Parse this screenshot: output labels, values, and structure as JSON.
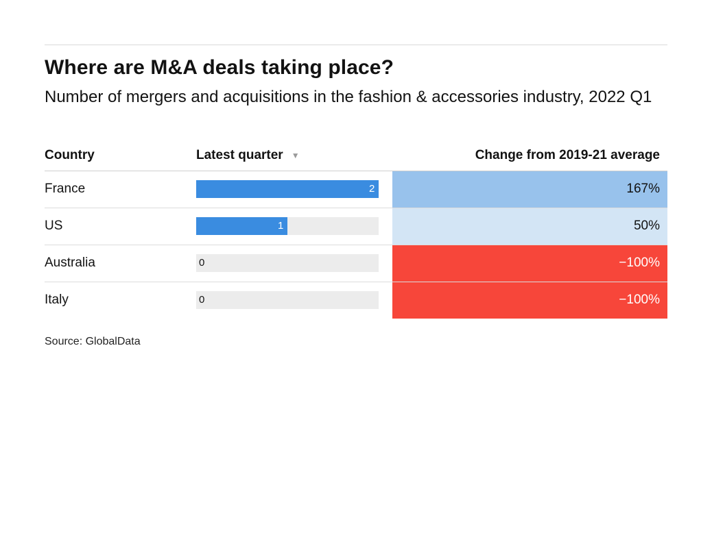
{
  "title": "Where are M&A deals taking place?",
  "subtitle": "Number of mergers and acquisitions in the fashion & accessories industry, 2022 Q1",
  "columns": {
    "country": "Country",
    "latest": "Latest quarter",
    "sort_icon": "▼",
    "change": "Change from 2019-21 average"
  },
  "source": "Source: GlobalData",
  "colors": {
    "bar": "#3a8ce0",
    "bar_track": "#ececec",
    "change_high_positive": "#98c2ec",
    "change_low_positive": "#d3e5f5",
    "change_negative": "#f7463a"
  },
  "chart_data": {
    "type": "table",
    "title": "Where are M&A deals taking place?",
    "subtitle": "Number of mergers and acquisitions in the fashion & accessories industry, 2022 Q1",
    "columns": [
      "Country",
      "Latest quarter",
      "Change from 2019-21 average"
    ],
    "bar_max": 2,
    "rows": [
      {
        "country": "France",
        "latest": 2,
        "change": "167%",
        "change_value": 167
      },
      {
        "country": "US",
        "latest": 1,
        "change": "50%",
        "change_value": 50
      },
      {
        "country": "Australia",
        "latest": 0,
        "change": "−100%",
        "change_value": -100
      },
      {
        "country": "Italy",
        "latest": 0,
        "change": "−100%",
        "change_value": -100
      }
    ]
  }
}
